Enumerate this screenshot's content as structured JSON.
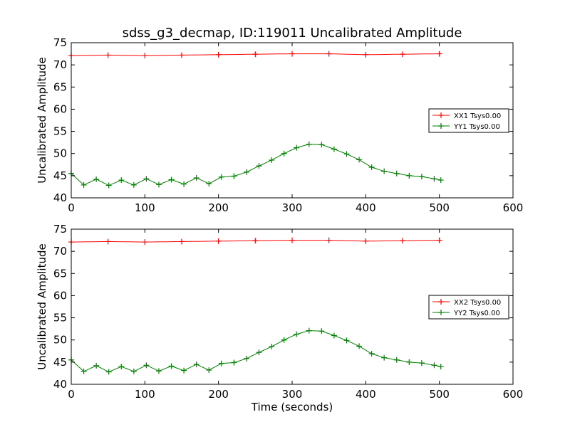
{
  "chart_data": [
    {
      "type": "line",
      "title": "sdss_g3_decmap, ID:119011 Uncalibrated Amplitude",
      "xlabel": "",
      "ylabel": "Uncalibrated Amplitude",
      "xlim": [
        0,
        600
      ],
      "ylim": [
        40,
        75
      ],
      "xticks": [
        "0",
        "100",
        "200",
        "300",
        "400",
        "500",
        "600"
      ],
      "yticks": [
        "40",
        "45",
        "50",
        "55",
        "60",
        "65",
        "70",
        "75"
      ],
      "grid": false,
      "legend_position": "center-right",
      "series": [
        {
          "name": "XX1 Tsys0.00",
          "color": "#ff0000",
          "marker": "+",
          "x": [
            0,
            50,
            100,
            150,
            200,
            250,
            300,
            350,
            400,
            450,
            500
          ],
          "values": [
            72.1,
            72.2,
            72.1,
            72.2,
            72.3,
            72.4,
            72.5,
            72.5,
            72.3,
            72.4,
            72.5
          ]
        },
        {
          "name": "YY1 Tsys0.00",
          "color": "#008000",
          "marker": "+",
          "x": [
            0,
            17,
            34,
            51,
            68,
            85,
            102,
            119,
            136,
            153,
            170,
            187,
            204,
            221,
            238,
            255,
            272,
            289,
            306,
            323,
            340,
            357,
            374,
            391,
            408,
            425,
            442,
            459,
            476,
            493,
            502
          ],
          "values": [
            45.5,
            42.9,
            44.2,
            42.8,
            44.0,
            42.9,
            44.3,
            43.0,
            44.1,
            43.1,
            44.5,
            43.2,
            44.7,
            44.9,
            45.8,
            47.2,
            48.5,
            50.0,
            51.3,
            52.1,
            52.0,
            51.0,
            49.9,
            48.6,
            46.9,
            46.0,
            45.5,
            45.0,
            44.8,
            44.3,
            44.0
          ]
        }
      ]
    },
    {
      "type": "line",
      "title": "",
      "xlabel": "Time (seconds)",
      "ylabel": "Uncalibrated Amplitude",
      "xlim": [
        0,
        600
      ],
      "ylim": [
        40,
        75
      ],
      "xticks": [
        "0",
        "100",
        "200",
        "300",
        "400",
        "500",
        "600"
      ],
      "yticks": [
        "40",
        "45",
        "50",
        "55",
        "60",
        "65",
        "70",
        "75"
      ],
      "grid": false,
      "legend_position": "center-right",
      "series": [
        {
          "name": "XX2 Tsys0.00",
          "color": "#ff0000",
          "marker": "+",
          "x": [
            0,
            50,
            100,
            150,
            200,
            250,
            300,
            350,
            400,
            450,
            500
          ],
          "values": [
            72.1,
            72.2,
            72.1,
            72.2,
            72.3,
            72.4,
            72.5,
            72.5,
            72.3,
            72.4,
            72.5
          ]
        },
        {
          "name": "YY2 Tsys0.00",
          "color": "#008000",
          "marker": "+",
          "x": [
            0,
            17,
            34,
            51,
            68,
            85,
            102,
            119,
            136,
            153,
            170,
            187,
            204,
            221,
            238,
            255,
            272,
            289,
            306,
            323,
            340,
            357,
            374,
            391,
            408,
            425,
            442,
            459,
            476,
            493,
            502
          ],
          "values": [
            45.5,
            42.9,
            44.2,
            42.8,
            44.0,
            42.9,
            44.3,
            43.0,
            44.1,
            43.1,
            44.5,
            43.2,
            44.7,
            44.9,
            45.8,
            47.2,
            48.5,
            50.0,
            51.3,
            52.1,
            52.0,
            51.0,
            49.9,
            48.6,
            46.9,
            46.0,
            45.5,
            45.0,
            44.8,
            44.3,
            44.0
          ]
        }
      ]
    }
  ]
}
